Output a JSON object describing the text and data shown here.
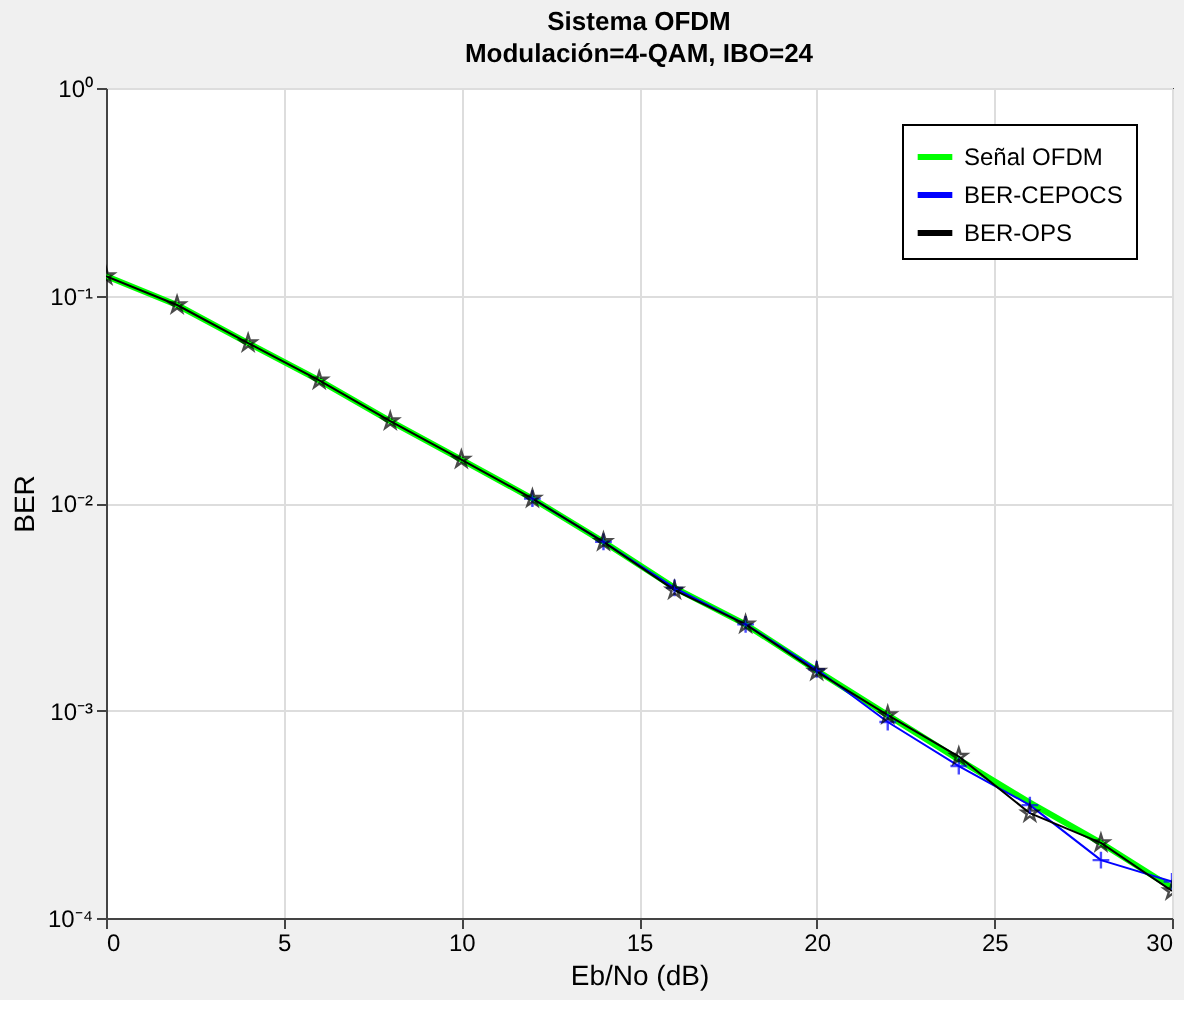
{
  "chart_data": {
    "type": "line",
    "title": "Sistema OFDM",
    "subtitle": "Modulación=4-QAM, IBO=24",
    "xlabel": "Eb/No (dB)",
    "ylabel": "BER",
    "x": [
      0,
      2,
      4,
      6,
      8,
      10,
      12,
      14,
      16,
      18,
      20,
      22,
      24,
      26,
      28,
      30
    ],
    "series": [
      {
        "name": "Señal OFDM",
        "color": "#00ff00",
        "marker": "none",
        "values": [
          0.124,
          0.09,
          0.059,
          0.039,
          0.0248,
          0.0162,
          0.0105,
          0.0065,
          0.0039,
          0.0026,
          0.00156,
          0.00095,
          0.00058,
          0.00036,
          0.00023,
          0.00014
        ]
      },
      {
        "name": "BER-CEPOCS",
        "color": "#0000ff",
        "marker": "cross",
        "values": [
          null,
          null,
          null,
          null,
          null,
          null,
          0.0105,
          0.0065,
          0.0039,
          0.0026,
          0.00158,
          0.00088,
          0.00054,
          0.00035,
          0.00019,
          0.00015
        ]
      },
      {
        "name": "BER-OPS",
        "color": "#000000",
        "marker": "star",
        "values": [
          0.124,
          0.09,
          0.059,
          0.039,
          0.0248,
          0.0162,
          0.0105,
          0.0065,
          0.0038,
          0.0026,
          0.00154,
          0.00095,
          0.0006,
          0.00032,
          0.00023,
          0.000135
        ]
      }
    ],
    "xlim": [
      0,
      30
    ],
    "xticks": [
      0,
      5,
      10,
      15,
      20,
      25,
      30
    ],
    "ylim": [
      0.0001,
      1
    ],
    "log": true,
    "yticks": [
      {
        "value": 0.0001,
        "label": "10⁻⁴"
      },
      {
        "value": 0.001,
        "label": "10⁻³"
      },
      {
        "value": 0.01,
        "label": "10⁻²"
      },
      {
        "value": 0.1,
        "label": "10⁻¹"
      },
      {
        "value": 1,
        "label": "10⁰"
      }
    ],
    "grid": true,
    "legend": "top right",
    "line_style": "solid"
  }
}
